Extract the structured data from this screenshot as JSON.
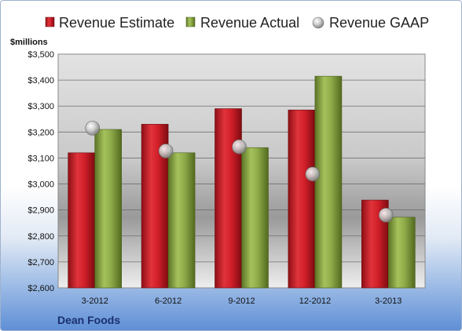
{
  "company": "Dean Foods",
  "chart_data": {
    "type": "bar",
    "ylabel": "$millions",
    "ylim": [
      2600,
      3500
    ],
    "ytick_step": 100,
    "categories": [
      "3-2012",
      "6-2012",
      "9-2012",
      "12-2012",
      "3-2013"
    ],
    "series": [
      {
        "name": "Revenue Estimate",
        "kind": "bar",
        "color": "#d3202a",
        "values": [
          3120,
          3230,
          3290,
          3285,
          2938
        ]
      },
      {
        "name": "Revenue Actual",
        "kind": "bar",
        "color": "#8fac4a",
        "values": [
          3210,
          3120,
          3140,
          3415,
          2872
        ]
      },
      {
        "name": "Revenue GAAP",
        "kind": "marker",
        "color": "#c8c8c8",
        "values": [
          3215,
          3127,
          3143,
          3038,
          2880
        ]
      }
    ],
    "grid": true,
    "legend": "top"
  }
}
